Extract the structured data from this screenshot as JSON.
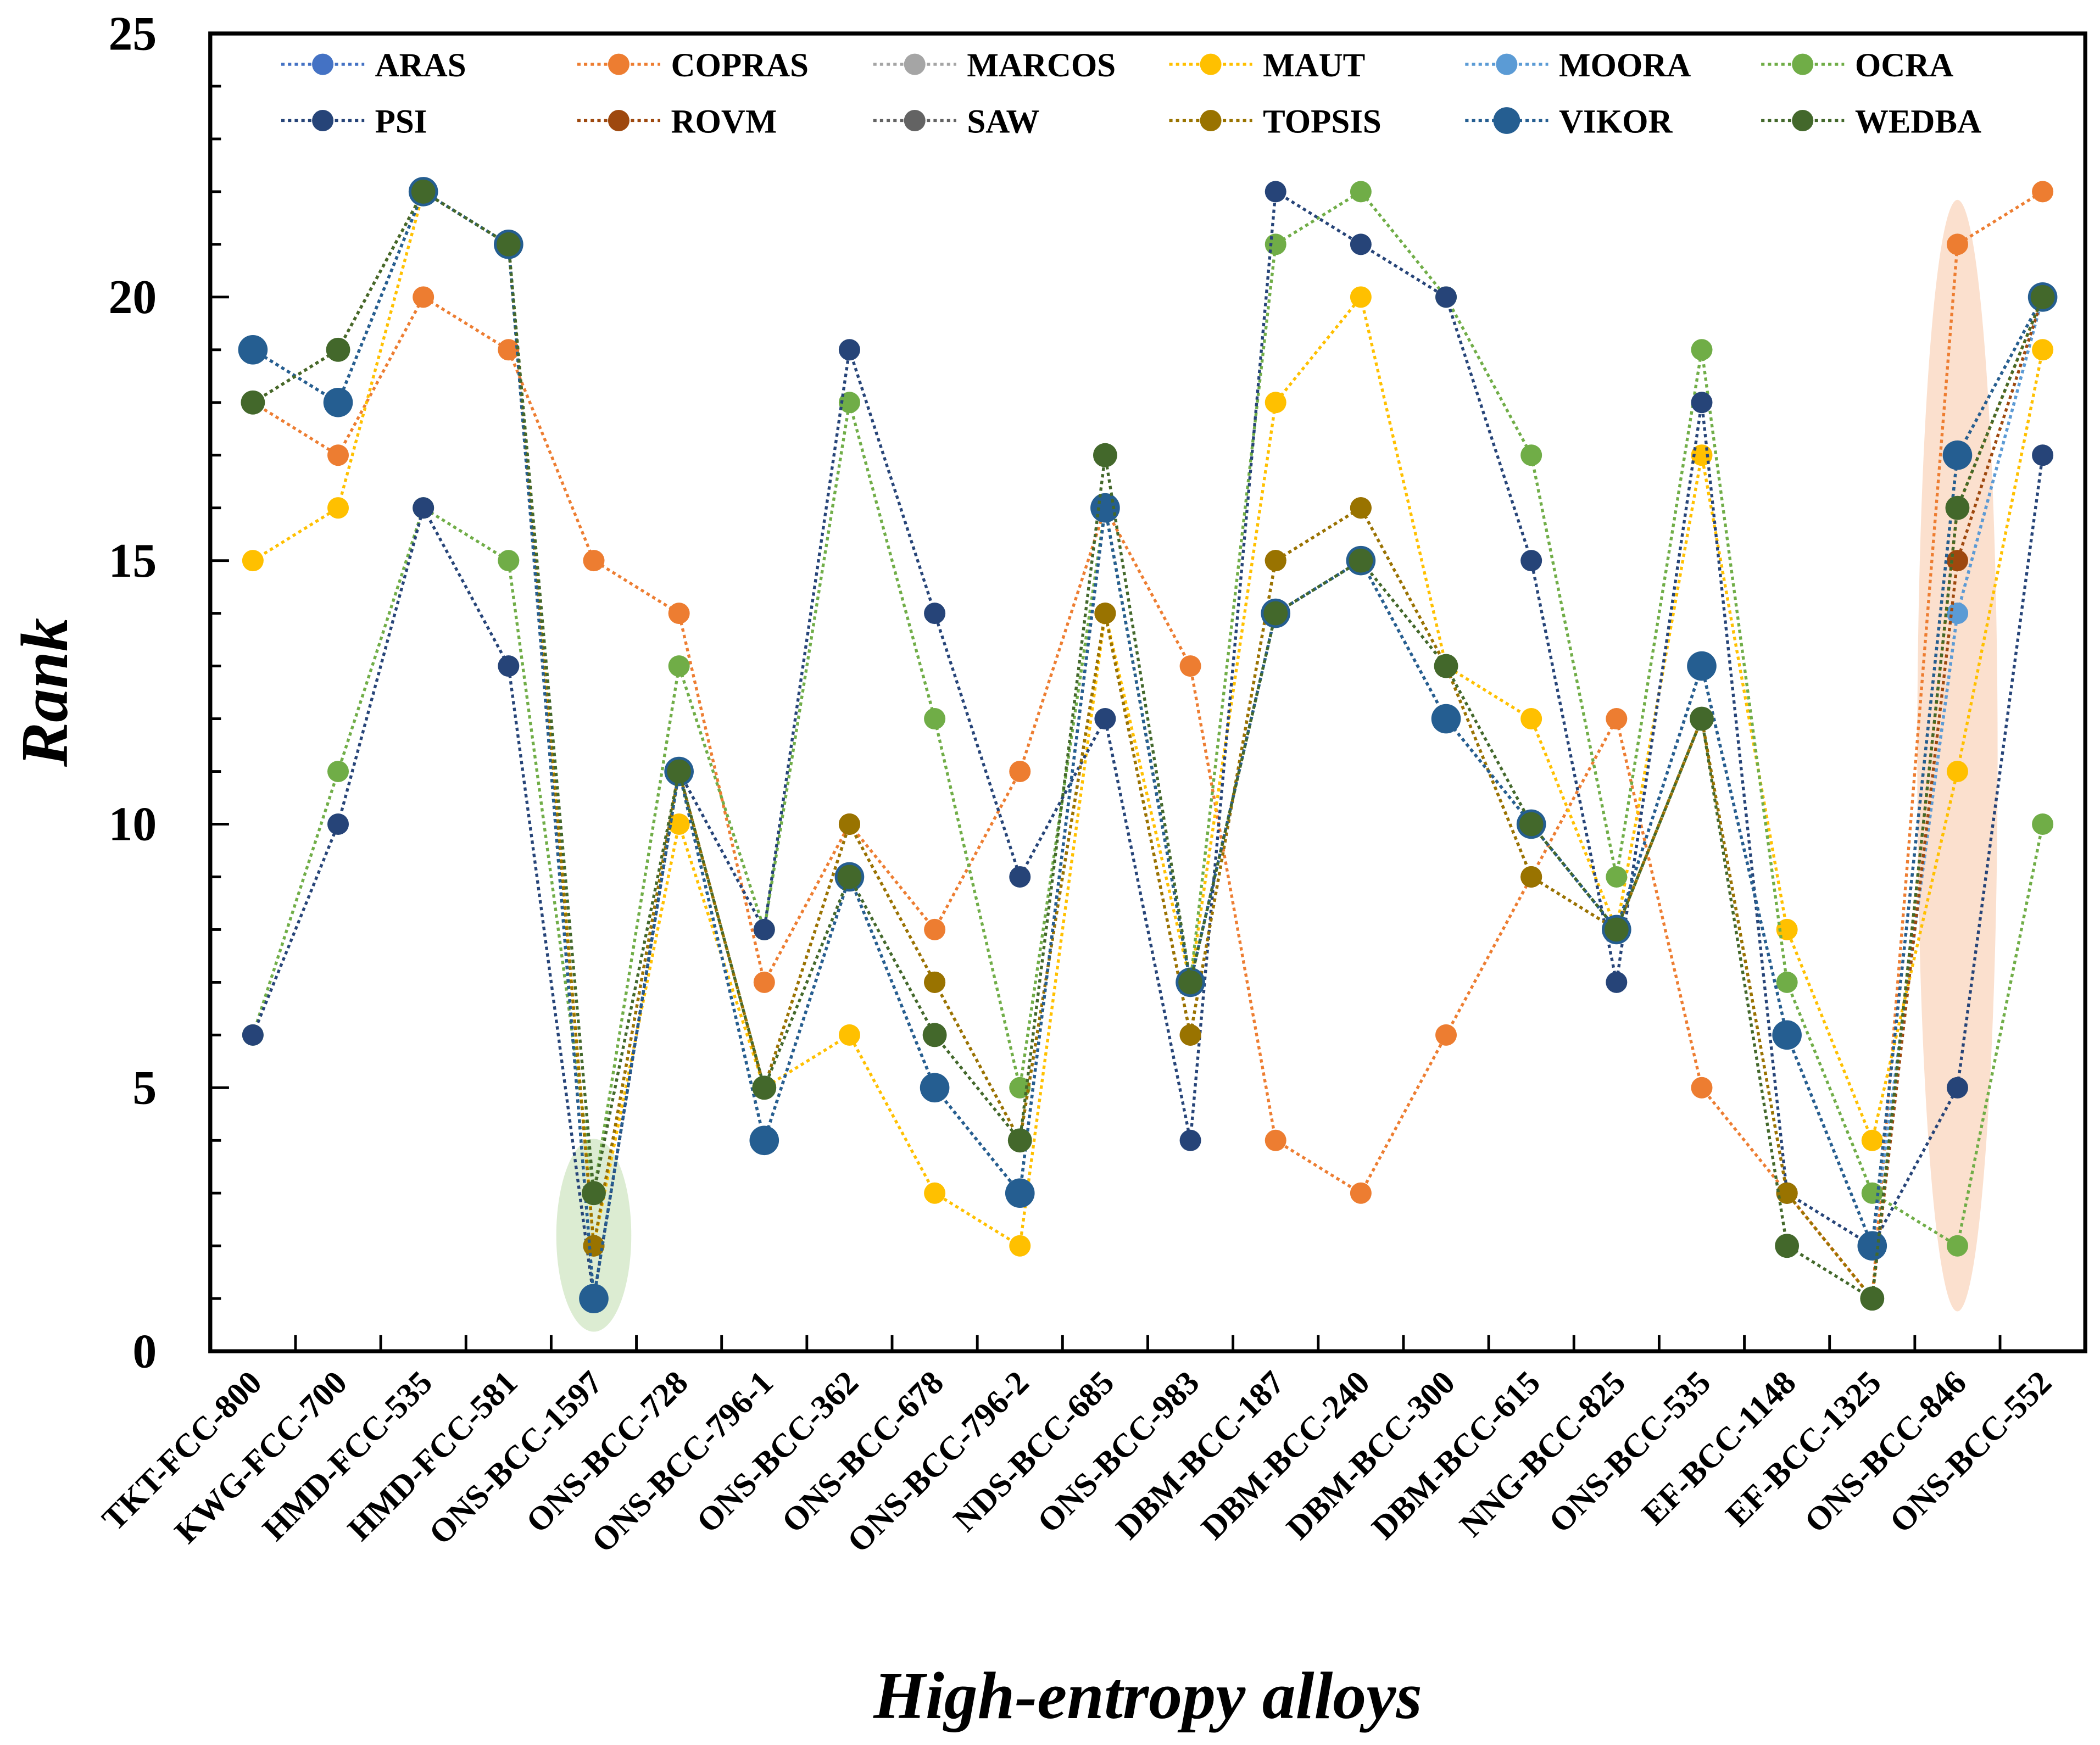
{
  "chart_data": {
    "type": "line",
    "title": "",
    "xlabel": "High-entropy alloys",
    "ylabel": "Rank",
    "ylim": [
      0,
      25
    ],
    "yticks": [
      "0",
      "5",
      "10",
      "15",
      "20",
      "25"
    ],
    "legend_position": "top",
    "categories": [
      "TKT-FCC-800",
      "KWG-FCC-700",
      "HMD-FCC-535",
      "HMD-FCC-581",
      "ONS-BCC-1597",
      "ONS-BCC-728",
      "ONS-BCC-796-1",
      "ONS-BCC-362",
      "ONS-BCC-678",
      "ONS-BCC-796-2",
      "NDS-BCC-685",
      "ONS-BCC-983",
      "DBM-BCC-187",
      "DBM-BCC-240",
      "DBM-BCC-300",
      "DBM-BCC-615",
      "NNG-BCC-825",
      "ONS-BCC-535",
      "EF-BCC-1148",
      "EF-BCC-1325",
      "ONS-BCC-846",
      "ONS-BCC-552"
    ],
    "series": [
      {
        "name": "ARAS",
        "color": "#4472c4",
        "values": [
          19,
          18,
          22,
          21,
          1,
          11,
          4,
          9,
          5,
          3,
          16,
          7,
          14,
          15,
          12,
          10,
          8,
          13,
          6,
          2,
          14,
          20
        ]
      },
      {
        "name": "COPRAS",
        "color": "#ed7d31",
        "values": [
          18,
          17,
          20,
          19,
          15,
          14,
          7,
          10,
          8,
          11,
          16,
          13,
          4,
          3,
          6,
          9,
          12,
          5,
          3,
          1,
          21,
          22
        ]
      },
      {
        "name": "MARCOS",
        "color": "#a5a5a5",
        "values": [
          19,
          18,
          22,
          21,
          1,
          11,
          4,
          9,
          5,
          3,
          16,
          7,
          14,
          15,
          12,
          10,
          8,
          13,
          6,
          2,
          17,
          20
        ]
      },
      {
        "name": "MAUT",
        "color": "#ffc000",
        "values": [
          15,
          16,
          22,
          21,
          2,
          10,
          5,
          6,
          3,
          2,
          14,
          7,
          18,
          20,
          13,
          12,
          8,
          17,
          8,
          4,
          11,
          19
        ]
      },
      {
        "name": "MOORA",
        "color": "#5b9bd5",
        "values": [
          19,
          18,
          22,
          21,
          1,
          11,
          4,
          9,
          5,
          3,
          16,
          7,
          14,
          15,
          12,
          10,
          8,
          13,
          6,
          2,
          14,
          20
        ]
      },
      {
        "name": "OCRA",
        "color": "#70ad47",
        "values": [
          6,
          11,
          16,
          15,
          3,
          13,
          8,
          18,
          12,
          5,
          16,
          7,
          21,
          22,
          20,
          17,
          9,
          19,
          7,
          3,
          2,
          10
        ]
      },
      {
        "name": "PSI",
        "color": "#264478",
        "values": [
          6,
          10,
          16,
          13,
          1,
          11,
          8,
          19,
          14,
          9,
          12,
          4,
          22,
          21,
          20,
          15,
          7,
          18,
          3,
          2,
          5,
          17
        ]
      },
      {
        "name": "ROVM",
        "color": "#9e480e",
        "values": [
          18,
          19,
          22,
          21,
          2,
          11,
          5,
          10,
          7,
          4,
          14,
          6,
          15,
          16,
          13,
          9,
          8,
          12,
          3,
          1,
          15,
          20
        ]
      },
      {
        "name": "SAW",
        "color": "#636363",
        "values": [
          19,
          18,
          22,
          21,
          1,
          11,
          4,
          9,
          5,
          3,
          16,
          7,
          14,
          15,
          12,
          10,
          8,
          13,
          6,
          2,
          17,
          20
        ]
      },
      {
        "name": "TOPSIS",
        "color": "#997300",
        "values": [
          18,
          19,
          22,
          21,
          2,
          11,
          5,
          10,
          7,
          4,
          14,
          6,
          15,
          16,
          13,
          9,
          8,
          12,
          3,
          1,
          16,
          20
        ]
      },
      {
        "name": "VIKOR",
        "color": "#255e91",
        "values": [
          19,
          18,
          22,
          21,
          1,
          11,
          4,
          9,
          5,
          3,
          16,
          7,
          14,
          15,
          12,
          10,
          8,
          13,
          6,
          2,
          17,
          20
        ]
      },
      {
        "name": "WEDBA",
        "color": "#43682b",
        "values": [
          18,
          19,
          22,
          21,
          3,
          11,
          5,
          9,
          6,
          4,
          17,
          7,
          14,
          15,
          13,
          10,
          8,
          12,
          2,
          1,
          16,
          20
        ]
      }
    ],
    "highlights": [
      {
        "category": "ONS-BCC-1597",
        "color": "#c5dfb4"
      },
      {
        "category": "ONS-BCC-846",
        "color": "#f8cbad"
      }
    ]
  }
}
